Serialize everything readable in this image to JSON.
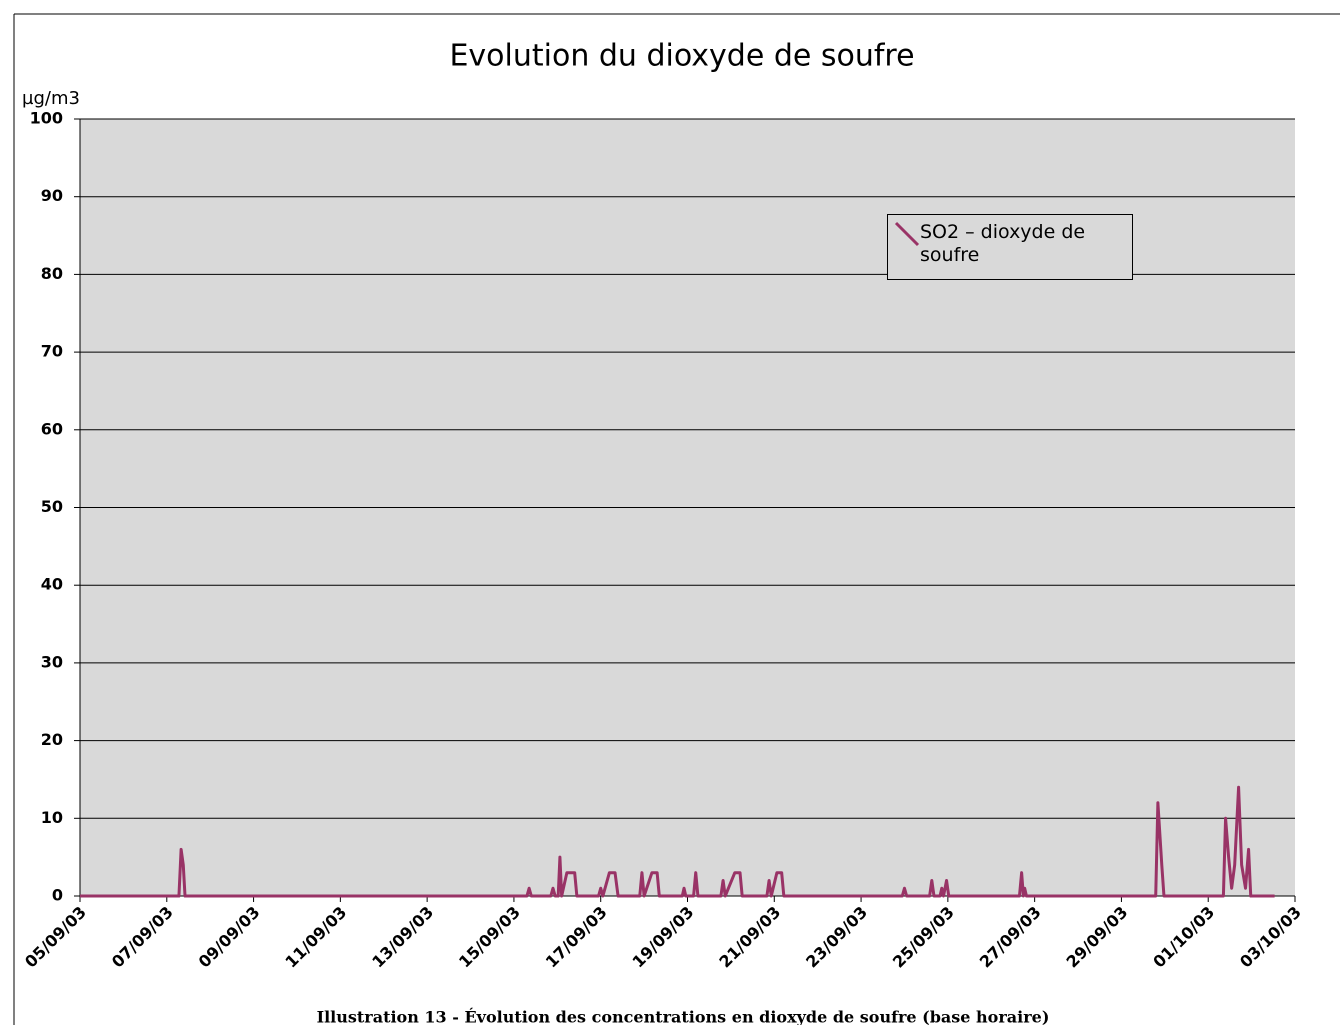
{
  "chart_data": {
    "type": "line",
    "title": "Evolution du dioxyde de soufre",
    "y_label": "µg/m3",
    "caption": "Illustration 13 - Évolution des concentrations en dioxyde de soufre (base horaire)",
    "xlim": [
      0,
      28
    ],
    "xticks": [
      {
        "value": 0,
        "label": "05/09/03"
      },
      {
        "value": 2,
        "label": "07/09/03"
      },
      {
        "value": 4,
        "label": "09/09/03"
      },
      {
        "value": 6,
        "label": "11/09/03"
      },
      {
        "value": 8,
        "label": "13/09/03"
      },
      {
        "value": 10,
        "label": "15/09/03"
      },
      {
        "value": 12,
        "label": "17/09/03"
      },
      {
        "value": 14,
        "label": "19/09/03"
      },
      {
        "value": 16,
        "label": "21/09/03"
      },
      {
        "value": 18,
        "label": "23/09/03"
      },
      {
        "value": 20,
        "label": "25/09/03"
      },
      {
        "value": 22,
        "label": "27/09/03"
      },
      {
        "value": 24,
        "label": "29/09/03"
      },
      {
        "value": 26,
        "label": "01/10/03"
      },
      {
        "value": 28,
        "label": "03/10/03"
      }
    ],
    "ylim": [
      0,
      100
    ],
    "yticks": [
      0,
      10,
      20,
      30,
      40,
      50,
      60,
      70,
      80,
      90,
      100
    ],
    "grid": true,
    "plot_background": "#d9d9d9",
    "legend_position": "upper right",
    "x": [
      0,
      2.28,
      2.33,
      2.38,
      2.42,
      10.3,
      10.35,
      10.4,
      10.85,
      10.9,
      10.95,
      11.02,
      11.06,
      11.1,
      11.22,
      11.4,
      11.45,
      11.95,
      12.0,
      12.05,
      12.2,
      12.33,
      12.4,
      12.9,
      12.95,
      13.0,
      13.18,
      13.3,
      13.35,
      13.88,
      13.92,
      13.96,
      14.14,
      14.19,
      14.24,
      14.77,
      14.82,
      14.87,
      15.09,
      15.21,
      15.26,
      15.83,
      15.88,
      15.93,
      16.06,
      16.17,
      16.22,
      18.95,
      19.0,
      19.05,
      19.58,
      19.63,
      19.68,
      19.82,
      19.86,
      19.9,
      19.97,
      20.02,
      21.65,
      21.7,
      21.74,
      21.77,
      21.81,
      24.79,
      24.84,
      24.93,
      24.98,
      26.35,
      26.4,
      26.47,
      26.54,
      26.61,
      26.7,
      26.77,
      26.86,
      26.93,
      26.98,
      27.53
    ],
    "series": [
      {
        "name": "SO2 – dioxyde de soufre",
        "color": "#993366",
        "values": [
          0,
          0,
          6,
          4,
          0,
          0,
          1,
          0,
          0,
          1,
          0,
          0,
          5,
          0,
          3,
          3,
          0,
          0,
          1,
          0,
          3,
          3,
          0,
          0,
          3,
          0,
          3,
          3,
          0,
          0,
          1,
          0,
          0,
          3,
          0,
          0,
          2,
          0,
          3,
          3,
          0,
          0,
          2,
          0,
          3,
          3,
          0,
          0,
          1,
          0,
          0,
          2,
          0,
          0,
          1,
          0,
          2,
          0,
          0,
          3,
          0,
          1,
          0,
          0,
          12,
          4,
          0,
          0,
          10,
          5,
          1,
          4,
          14,
          4,
          1,
          6,
          0,
          0
        ]
      }
    ]
  }
}
